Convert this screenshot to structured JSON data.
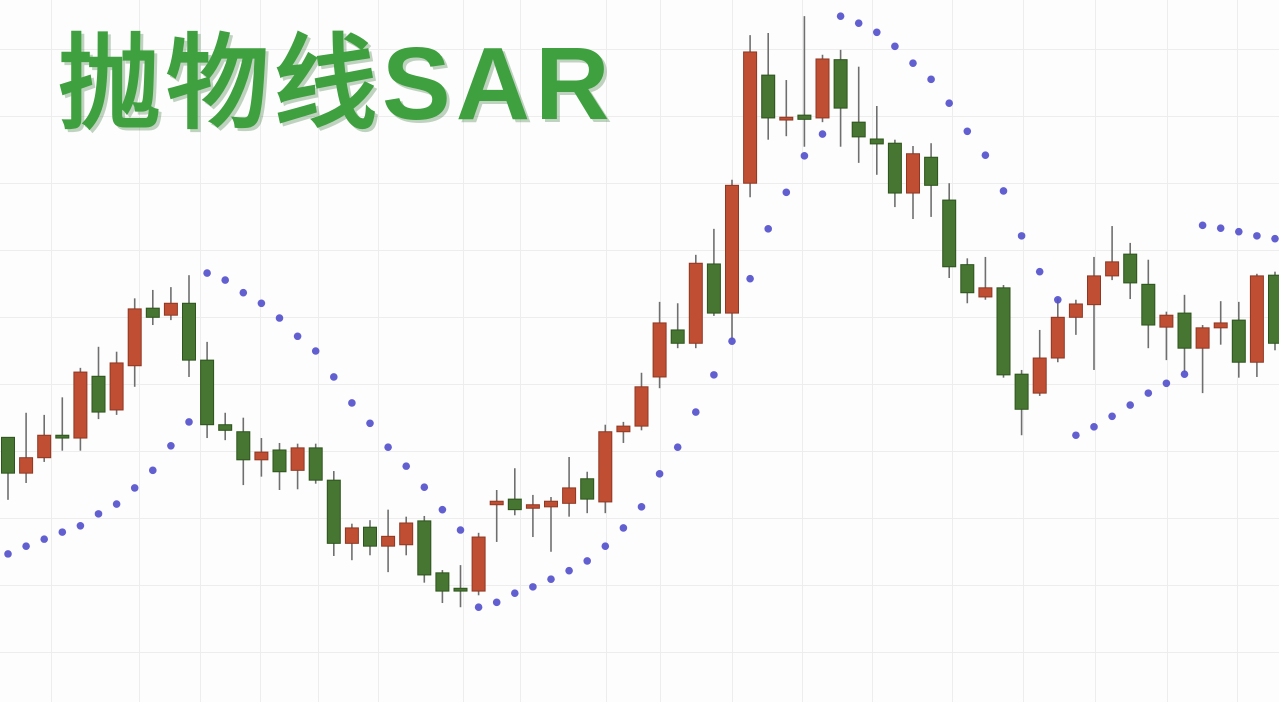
{
  "colors": {
    "background": "#fdfdfd",
    "grid": "#ededed",
    "up_body": "#c04e33",
    "up_border": "#8f3722",
    "down_body": "#467631",
    "down_border": "#2d541c",
    "wick": "#6f6f6f",
    "sar_dot": "#5551cd",
    "title": "#3fa03f"
  },
  "chart_data": {
    "type": "candlestick",
    "title": "抛物线SAR",
    "axes_visible": false,
    "grid": true,
    "legend": "none",
    "x_count": 71,
    "ylim": [
      0,
      100
    ],
    "value_scale": "normalized-0-100 (chart shows no numeric axis labels)",
    "up_convention": "red candles rise (close > open), green candles fall",
    "series": [
      {
        "name": "price",
        "type": "candlestick",
        "candles": [
          [
            37.7,
            37.7,
            28.8,
            32.6
          ],
          [
            32.6,
            41.2,
            31.2,
            34.8
          ],
          [
            34.8,
            40.9,
            34.2,
            38.0
          ],
          [
            38.0,
            43.4,
            35.8,
            37.6
          ],
          [
            37.6,
            47.6,
            35.8,
            47.0
          ],
          [
            46.4,
            50.6,
            40.3,
            41.3
          ],
          [
            41.6,
            49.9,
            40.9,
            48.3
          ],
          [
            47.9,
            57.5,
            44.9,
            56.0
          ],
          [
            56.1,
            58.7,
            53.7,
            54.8
          ],
          [
            55.1,
            59.1,
            54.4,
            56.8
          ],
          [
            56.8,
            60.8,
            46.3,
            48.7
          ],
          [
            48.7,
            51.3,
            37.6,
            39.5
          ],
          [
            39.5,
            41.2,
            37.3,
            38.7
          ],
          [
            38.5,
            40.5,
            30.9,
            34.5
          ],
          [
            34.5,
            37.6,
            32.1,
            35.6
          ],
          [
            35.9,
            36.9,
            30.2,
            32.8
          ],
          [
            33.0,
            36.8,
            30.3,
            36.2
          ],
          [
            36.2,
            36.8,
            31.1,
            31.6
          ],
          [
            31.6,
            32.9,
            20.8,
            22.6
          ],
          [
            22.6,
            25.4,
            20.2,
            24.8
          ],
          [
            24.9,
            25.9,
            20.9,
            22.2
          ],
          [
            22.2,
            27.4,
            18.5,
            23.6
          ],
          [
            22.4,
            26.4,
            20.9,
            25.5
          ],
          [
            25.8,
            26.5,
            17.0,
            18.1
          ],
          [
            18.4,
            18.8,
            14.1,
            15.8
          ],
          [
            16.2,
            19.5,
            13.5,
            15.8
          ],
          [
            15.8,
            24.1,
            15.2,
            23.5
          ],
          [
            28.1,
            30.2,
            22.8,
            28.6
          ],
          [
            28.9,
            33.3,
            26.6,
            27.4
          ],
          [
            27.6,
            29.5,
            23.5,
            28.1
          ],
          [
            27.8,
            29.2,
            21.4,
            28.6
          ],
          [
            28.3,
            34.9,
            26.4,
            30.5
          ],
          [
            31.8,
            32.8,
            26.9,
            28.9
          ],
          [
            28.5,
            39.5,
            26.9,
            38.5
          ],
          [
            38.5,
            39.9,
            36.9,
            39.3
          ],
          [
            39.3,
            46.9,
            38.7,
            44.9
          ],
          [
            46.3,
            57.0,
            44.7,
            54.0
          ],
          [
            53.0,
            56.8,
            50.4,
            51.1
          ],
          [
            51.1,
            63.7,
            50.4,
            62.5
          ],
          [
            62.4,
            67.4,
            55.0,
            55.4
          ],
          [
            55.4,
            74.4,
            51.6,
            73.6
          ],
          [
            73.9,
            95.0,
            71.9,
            92.6
          ],
          [
            89.3,
            95.3,
            80.1,
            83.2
          ],
          [
            82.9,
            88.6,
            80.6,
            83.3
          ],
          [
            83.6,
            97.7,
            79.1,
            83.0
          ],
          [
            83.2,
            92.2,
            82.6,
            91.6
          ],
          [
            91.5,
            92.9,
            79.1,
            84.6
          ],
          [
            82.6,
            90.5,
            76.8,
            80.5
          ],
          [
            80.2,
            84.9,
            75.1,
            79.5
          ],
          [
            79.6,
            80.1,
            70.5,
            72.5
          ],
          [
            72.5,
            79.2,
            68.8,
            78.1
          ],
          [
            77.6,
            79.6,
            69.1,
            73.6
          ],
          [
            71.5,
            73.9,
            60.4,
            62.0
          ],
          [
            62.3,
            63.2,
            56.8,
            58.3
          ],
          [
            57.7,
            63.4,
            57.3,
            59.0
          ],
          [
            59.0,
            59.4,
            46.2,
            46.6
          ],
          [
            46.7,
            47.3,
            38.0,
            41.7
          ],
          [
            44.0,
            53.0,
            43.6,
            49.0
          ],
          [
            49.0,
            57.5,
            48.4,
            54.8
          ],
          [
            54.8,
            57.3,
            52.3,
            56.7
          ],
          [
            56.6,
            63.4,
            47.3,
            60.7
          ],
          [
            60.7,
            67.8,
            60.1,
            62.7
          ],
          [
            63.8,
            65.4,
            57.4,
            59.7
          ],
          [
            59.5,
            63.0,
            50.4,
            53.7
          ],
          [
            53.4,
            55.6,
            48.7,
            55.1
          ],
          [
            55.4,
            58.0,
            47.0,
            50.4
          ],
          [
            50.4,
            53.7,
            44.0,
            53.3
          ],
          [
            53.3,
            57.1,
            50.9,
            54.0
          ],
          [
            54.4,
            57.0,
            46.2,
            48.4
          ],
          [
            48.4,
            61.0,
            46.3,
            60.7
          ],
          [
            60.8,
            61.3,
            50.1,
            51.1
          ]
        ]
      },
      {
        "name": "parabolic-sar",
        "type": "scatter",
        "values": [
          21.1,
          22.2,
          23.2,
          24.2,
          25.1,
          26.8,
          28.2,
          30.5,
          33.0,
          36.5,
          39.9,
          61.1,
          60.1,
          58.3,
          56.8,
          54.7,
          52.1,
          50.0,
          46.3,
          42.6,
          39.7,
          36.3,
          33.6,
          30.6,
          27.4,
          24.5,
          13.5,
          14.2,
          15.5,
          16.4,
          17.5,
          18.7,
          20.1,
          22.2,
          24.8,
          27.8,
          32.5,
          36.3,
          41.3,
          46.6,
          51.4,
          60.3,
          67.4,
          72.6,
          77.8,
          80.9,
          97.7,
          96.7,
          95.4,
          93.4,
          91.0,
          88.7,
          85.3,
          81.3,
          77.9,
          72.8,
          66.4,
          61.3,
          57.3,
          38.0,
          39.2,
          40.7,
          42.3,
          44.0,
          45.4,
          46.7,
          67.9,
          67.5,
          67.0,
          66.4,
          66.0
        ],
        "position_segments": [
          {
            "from": 0,
            "to": 10,
            "position": "below-price-uptrend"
          },
          {
            "from": 11,
            "to": 25,
            "position": "above-price-downtrend"
          },
          {
            "from": 26,
            "to": 45,
            "position": "below-price-uptrend"
          },
          {
            "from": 46,
            "to": 58,
            "position": "above-price-downtrend"
          },
          {
            "from": 59,
            "to": 65,
            "position": "below-price-uptrend"
          },
          {
            "from": 66,
            "to": 70,
            "position": "above-price-downtrend"
          }
        ]
      }
    ]
  }
}
